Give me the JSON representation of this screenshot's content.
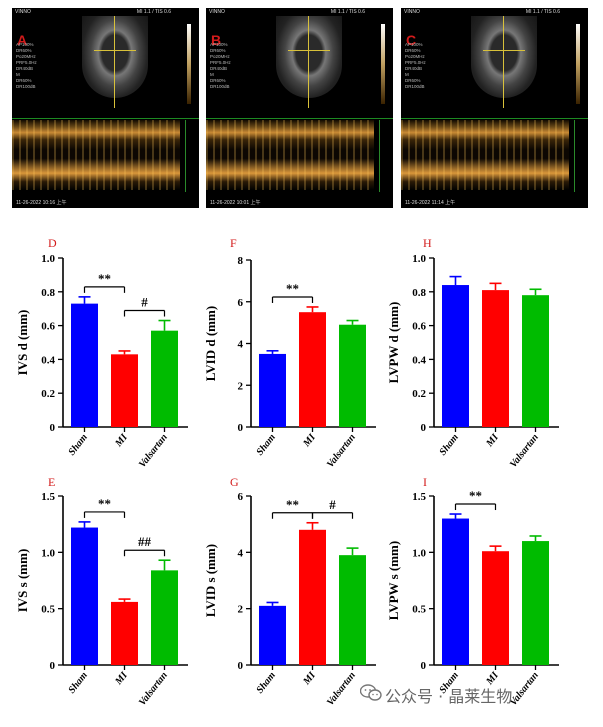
{
  "echo_panels": [
    {
      "letter": "A",
      "header_left": "VINNO",
      "header_right": "MI 1.1 / TIS 0.6",
      "params": "AP100%\nDR60%\nPo20MHz\nPRF5.0Hz\nDR40dB\nM\nDR60%\nDR100dB",
      "date": "11-26-2022 10:16 上午"
    },
    {
      "letter": "B",
      "header_left": "VINNO",
      "header_right": "MI 1.1 / TIS 0.6",
      "params": "AP100%\nDR60%\nPo20MHz\nPRF5.0Hz\nDR40dB\nM\nDR60%\nDR100dB",
      "date": "11-26-2022 10:01 上午"
    },
    {
      "letter": "C",
      "header_left": "VINNO",
      "header_right": "MI 1.1 / TIS 0.6",
      "params": "AP100%\nDR60%\nPo20MHz\nPRF5.0Hz\nDR40dB\nM\nDR60%\nDR100dB",
      "date": "11-26-2022 11:14 上午"
    }
  ],
  "colors": {
    "sham": "#0000ff",
    "mi": "#ff0000",
    "valsartan": "#00bb00",
    "panel_letter": "#d31b1b"
  },
  "chart_data": [
    {
      "panel": "D",
      "type": "bar",
      "categories": [
        "Sham",
        "MI",
        "Valsartan"
      ],
      "values": [
        0.73,
        0.43,
        0.57
      ],
      "errors": [
        0.04,
        0.02,
        0.06
      ],
      "ylabel": "IVS d (mm)",
      "ylim": [
        0,
        1.0
      ],
      "yticks": [
        "0",
        "0.2",
        "0.4",
        "0.6",
        "0.8",
        "1.0"
      ],
      "annotations": [
        {
          "from": 0,
          "to": 1,
          "text": "**"
        },
        {
          "from": 1,
          "to": 2,
          "text": "#"
        }
      ]
    },
    {
      "panel": "F",
      "type": "bar",
      "categories": [
        "Sham",
        "MI",
        "Valsartan"
      ],
      "values": [
        3.5,
        5.5,
        4.9
      ],
      "errors": [
        0.15,
        0.25,
        0.2
      ],
      "ylabel": "LVID d (mm)",
      "ylim": [
        0,
        8
      ],
      "yticks": [
        "0",
        "2",
        "4",
        "6",
        "8"
      ],
      "annotations": [
        {
          "from": 0,
          "to": 1,
          "text": "**"
        }
      ]
    },
    {
      "panel": "H",
      "type": "bar",
      "categories": [
        "Sham",
        "MI",
        "Valsartan"
      ],
      "values": [
        0.84,
        0.81,
        0.78
      ],
      "errors": [
        0.05,
        0.04,
        0.035
      ],
      "ylabel": "LVPW d (mm)",
      "ylim": [
        0,
        1.0
      ],
      "yticks": [
        "0",
        "0.2",
        "0.4",
        "0.6",
        "0.8",
        "1.0"
      ],
      "annotations": []
    },
    {
      "panel": "E",
      "type": "bar",
      "categories": [
        "Sham",
        "MI",
        "Valsartan"
      ],
      "values": [
        1.22,
        0.56,
        0.84
      ],
      "errors": [
        0.05,
        0.025,
        0.09
      ],
      "ylabel": "IVS s (mm)",
      "ylim": [
        0,
        1.5
      ],
      "yticks": [
        "0",
        "0.5",
        "1.0",
        "1.5"
      ],
      "annotations": [
        {
          "from": 0,
          "to": 1,
          "text": "**"
        },
        {
          "from": 1,
          "to": 2,
          "text": "##"
        }
      ]
    },
    {
      "panel": "G",
      "type": "bar",
      "categories": [
        "Sham",
        "MI",
        "Valsartan"
      ],
      "values": [
        2.1,
        4.8,
        3.9
      ],
      "errors": [
        0.12,
        0.25,
        0.25
      ],
      "ylabel": "LVID s (mm)",
      "ylim": [
        0,
        6
      ],
      "yticks": [
        "0",
        "2",
        "4",
        "6"
      ],
      "annotations": [
        {
          "from": 0,
          "to": 1,
          "text": "**"
        },
        {
          "from": 1,
          "to": 2,
          "text": "#"
        }
      ]
    },
    {
      "panel": "I",
      "type": "bar",
      "categories": [
        "Sham",
        "MI",
        "Valsartan"
      ],
      "values": [
        1.3,
        1.01,
        1.1
      ],
      "errors": [
        0.04,
        0.045,
        0.045
      ],
      "ylabel": "LVPW s (mm)",
      "ylim": [
        0,
        1.5
      ],
      "yticks": [
        "0",
        "0.5",
        "1.0",
        "1.5"
      ],
      "annotations": [
        {
          "from": 0,
          "to": 1,
          "text": "**"
        }
      ]
    }
  ],
  "watermark": "公众号 · 晶莱生物"
}
